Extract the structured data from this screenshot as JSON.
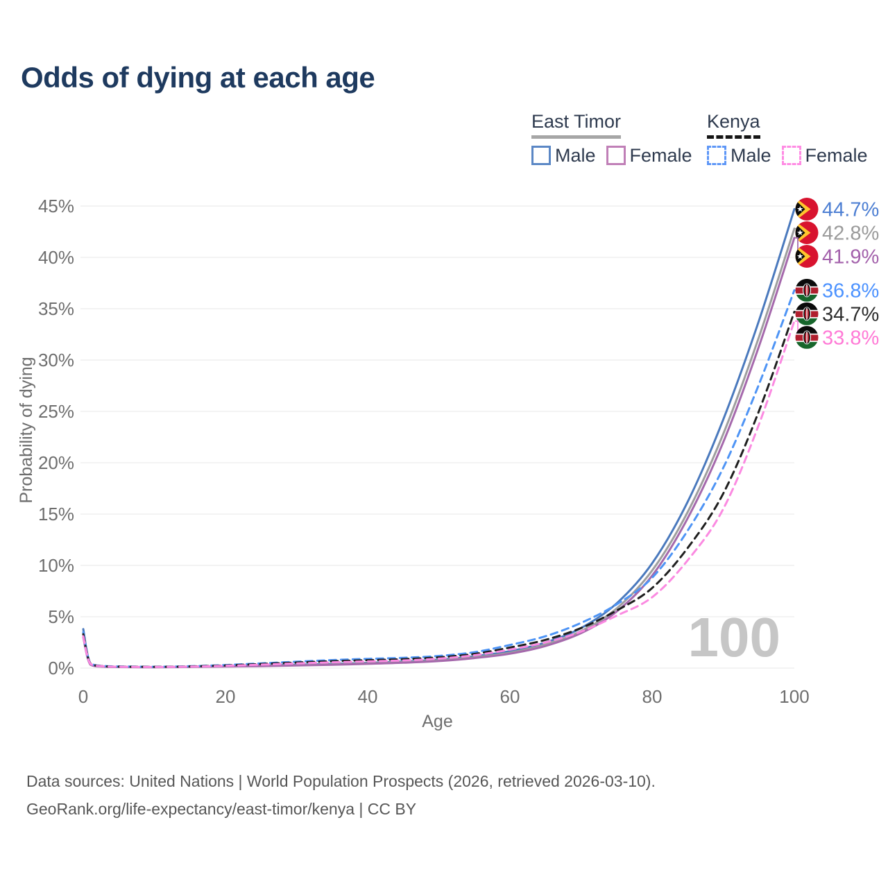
{
  "title": "Odds of dying at each age",
  "legend": {
    "groups": [
      {
        "name": "East Timor",
        "line_style": "solid",
        "underline_color": "#a6a6a6",
        "items": [
          {
            "label": "Male",
            "color": "#5b87c5",
            "dashed": false
          },
          {
            "label": "Female",
            "color": "#c07fb7",
            "dashed": false
          }
        ]
      },
      {
        "name": "Kenya",
        "line_style": "dashed",
        "underline_color": "#151515",
        "items": [
          {
            "label": "Male",
            "color": "#5e97f7",
            "dashed": true
          },
          {
            "label": "Female",
            "color": "#ff8ce4",
            "dashed": true
          }
        ]
      }
    ]
  },
  "watermark": "100",
  "footer": {
    "line1": "Data sources: United Nations | World Population Prospects (2026, retrieved 2026-03-10).",
    "line2": "GeoRank.org/life-expectancy/east-timor/kenya | CC BY"
  },
  "chart_data": {
    "type": "line",
    "title": "Odds of dying at each age",
    "xlabel": "Age",
    "ylabel": "Probability of dying",
    "xlim": [
      0,
      100
    ],
    "ylim": [
      0,
      45
    ],
    "xticks": [
      0,
      20,
      40,
      60,
      80,
      100
    ],
    "yticks": [
      0,
      5,
      10,
      15,
      20,
      25,
      30,
      35,
      40,
      45
    ],
    "ytick_suffix": "%",
    "grid": "horizontal",
    "legend_position": "top-right",
    "x": [
      0,
      1,
      3,
      5,
      10,
      15,
      20,
      25,
      30,
      35,
      40,
      45,
      50,
      55,
      60,
      65,
      70,
      75,
      80,
      85,
      90,
      95,
      100
    ],
    "series": [
      {
        "name": "East Timor Male",
        "country": "East Timor",
        "sex": "Male",
        "flag": "east-timor",
        "line_color": "#4a79bd",
        "label_color": "#4d7fd3",
        "dashed": false,
        "end_label": "44.7%",
        "end_value": 44.7,
        "values": [
          3.8,
          0.4,
          0.16,
          0.12,
          0.1,
          0.14,
          0.2,
          0.26,
          0.33,
          0.41,
          0.51,
          0.64,
          0.82,
          1.15,
          1.65,
          2.5,
          3.9,
          6.3,
          10.2,
          16.2,
          24.2,
          33.8,
          44.7
        ]
      },
      {
        "name": "East Timor Both sexes",
        "country": "East Timor",
        "sex": "Both",
        "flag": "east-timor",
        "line_color": "#9e9e9e",
        "label_color": "#9b9b9b",
        "dashed": false,
        "end_label": "42.8%",
        "end_value": 42.8,
        "values": [
          3.4,
          0.36,
          0.14,
          0.11,
          0.09,
          0.12,
          0.17,
          0.22,
          0.28,
          0.36,
          0.46,
          0.58,
          0.75,
          1.05,
          1.5,
          2.3,
          3.6,
          5.8,
          9.5,
          15.2,
          22.8,
          32.2,
          42.8
        ]
      },
      {
        "name": "East Timor Female",
        "country": "East Timor",
        "sex": "Female",
        "flag": "east-timor",
        "line_color": "#a569ac",
        "label_color": "#a361ab",
        "dashed": false,
        "end_label": "41.9%",
        "end_value": 41.9,
        "values": [
          3.0,
          0.33,
          0.13,
          0.1,
          0.08,
          0.11,
          0.15,
          0.19,
          0.25,
          0.32,
          0.41,
          0.52,
          0.68,
          0.97,
          1.4,
          2.15,
          3.4,
          5.5,
          9.0,
          14.6,
          22.0,
          31.3,
          41.9
        ]
      },
      {
        "name": "Kenya Male",
        "country": "Kenya",
        "sex": "Male",
        "flag": "kenya",
        "line_color": "#4e94f5",
        "label_color": "#4c92ff",
        "dashed": true,
        "end_label": "36.8%",
        "end_value": 36.8,
        "values": [
          3.5,
          0.48,
          0.2,
          0.16,
          0.13,
          0.18,
          0.3,
          0.46,
          0.62,
          0.78,
          0.9,
          1.0,
          1.18,
          1.55,
          2.25,
          3.1,
          4.4,
          6.2,
          8.8,
          13.4,
          19.5,
          27.6,
          36.8
        ]
      },
      {
        "name": "Kenya Both sexes",
        "country": "Kenya",
        "sex": "Both",
        "flag": "kenya",
        "line_color": "#1f1f1f",
        "label_color": "#2d2d2d",
        "dashed": true,
        "end_label": "34.7%",
        "end_value": 34.7,
        "values": [
          3.3,
          0.45,
          0.18,
          0.14,
          0.12,
          0.16,
          0.26,
          0.4,
          0.54,
          0.67,
          0.77,
          0.87,
          1.05,
          1.38,
          2.0,
          2.75,
          3.9,
          5.6,
          7.8,
          11.7,
          17.0,
          25.0,
          34.7
        ]
      },
      {
        "name": "Kenya Female",
        "country": "Kenya",
        "sex": "Female",
        "flag": "kenya",
        "line_color": "#fb8ae1",
        "label_color": "#ff7ad6",
        "dashed": true,
        "end_label": "33.8%",
        "end_value": 33.8,
        "values": [
          3.1,
          0.42,
          0.17,
          0.13,
          0.11,
          0.14,
          0.22,
          0.33,
          0.45,
          0.56,
          0.65,
          0.74,
          0.92,
          1.25,
          1.8,
          2.5,
          3.55,
          5.1,
          6.9,
          10.5,
          15.5,
          23.7,
          33.8
        ]
      }
    ]
  }
}
